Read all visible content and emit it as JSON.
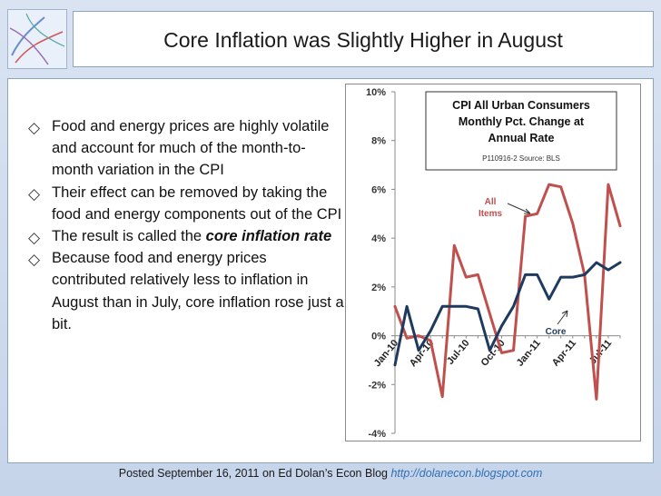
{
  "slide": {
    "title": "Core Inflation was Slightly Higher in August",
    "bullets": [
      {
        "text": "Food and energy prices are highly volatile and account for much of the month-to-month variation in the CPI"
      },
      {
        "text": "Their effect can be removed by taking the food and energy components out of the CPI"
      },
      {
        "text_before": "The result is called the ",
        "emphasis": "core inflation rate",
        "text_after": ""
      },
      {
        "text": "Because food and energy prices contributed relatively less to inflation in August than in July, core inflation rose just a bit."
      }
    ],
    "footer": {
      "text": "Posted September 16, 2011 on Ed Dolan’s Econ Blog ",
      "url": "http://dolanecon.blogspot.com"
    }
  },
  "chart_data": {
    "type": "line",
    "title_lines": [
      "CPI All Urban Consumers",
      "Monthly Pct. Change at",
      "Annual Rate"
    ],
    "source_note": "P110916-2 Source: BLS",
    "x": [
      "Jan-10",
      "Feb-10",
      "Mar-10",
      "Apr-10",
      "May-10",
      "Jun-10",
      "Jul-10",
      "Aug-10",
      "Sep-10",
      "Oct-10",
      "Nov-10",
      "Dec-10",
      "Jan-11",
      "Feb-11",
      "Mar-11",
      "Apr-11",
      "May-11",
      "Jun-11",
      "Jul-11",
      "Aug-11"
    ],
    "x_tick_labels": [
      "Jan-10",
      "Apr-10",
      "Jul-10",
      "Oct-10",
      "Jan-11",
      "Apr-11",
      "Jul-11"
    ],
    "x_tick_indices": [
      0,
      3,
      6,
      9,
      12,
      15,
      18
    ],
    "ylim": [
      -4,
      10
    ],
    "y_ticks": [
      -4,
      -2,
      0,
      2,
      4,
      6,
      8,
      10
    ],
    "y_tick_labels": [
      "-4%",
      "-2%",
      "0%",
      "2%",
      "4%",
      "6%",
      "8%",
      "10%"
    ],
    "grid": false,
    "series": [
      {
        "name": "All Items",
        "color": "#c0504d",
        "values": [
          1.2,
          -0.1,
          0.0,
          -0.2,
          -2.5,
          3.7,
          2.4,
          2.5,
          0.9,
          -0.7,
          -0.6,
          4.9,
          5.0,
          6.2,
          6.1,
          4.6,
          2.5,
          -2.6,
          6.2,
          4.5
        ]
      },
      {
        "name": "Core",
        "color": "#1f3a5f",
        "values": [
          -1.2,
          1.2,
          -0.6,
          0.2,
          1.2,
          1.2,
          1.2,
          1.1,
          -0.6,
          0.4,
          1.2,
          2.5,
          2.5,
          1.5,
          2.4,
          2.4,
          2.5,
          3.0,
          2.7,
          3.0
        ]
      }
    ],
    "annotations": [
      {
        "text_lines": [
          "All",
          "Items"
        ],
        "series": "All Items"
      },
      {
        "text_lines": [
          "Core"
        ],
        "series": "Core"
      }
    ]
  }
}
